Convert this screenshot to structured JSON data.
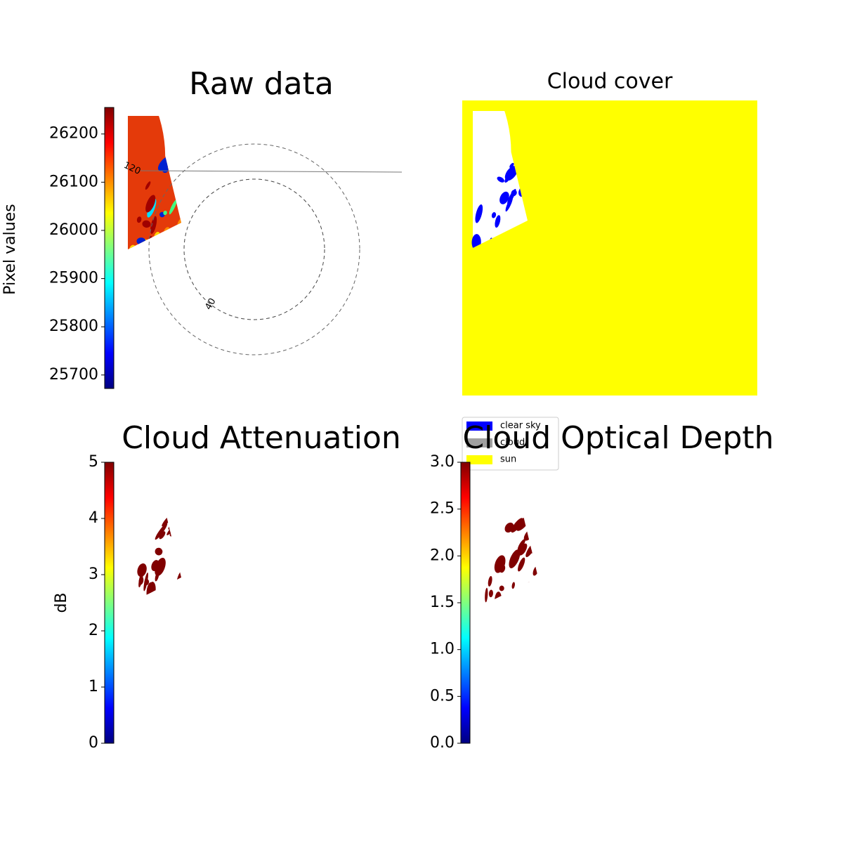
{
  "chart_data": [
    {
      "type": "image",
      "title": "Raw data",
      "colormap": "jet",
      "colorbar": {
        "label": "Pixel values",
        "clim": [
          25672,
          26255
        ],
        "ticks": [
          25700,
          25800,
          25900,
          26000,
          26100,
          26200
        ]
      },
      "annotations": [
        "120",
        "40"
      ]
    },
    {
      "type": "image",
      "title": "Cloud cover",
      "legend": {
        "position": "lower left",
        "items": [
          {
            "name": "clear sky",
            "color": "#0000ff"
          },
          {
            "name": "cloud",
            "color": "#a0a0a0"
          },
          {
            "name": "sun",
            "color": "#ffff00"
          }
        ]
      }
    },
    {
      "type": "image",
      "title": "Cloud Attenuation",
      "colormap": "jet",
      "colorbar": {
        "label": "dB",
        "clim": [
          0,
          5
        ],
        "ticks": [
          0,
          1,
          2,
          3,
          4,
          5
        ]
      }
    },
    {
      "type": "image",
      "title": "Cloud Optical Depth",
      "colormap": "jet",
      "colorbar": {
        "clim": [
          0,
          3
        ],
        "ticks": [
          {
            "value": 0,
            "label": "0.0"
          },
          {
            "value": 0.5,
            "label": "0.5"
          },
          {
            "value": 1,
            "label": "1.0"
          },
          {
            "value": 1.5,
            "label": "1.5"
          },
          {
            "value": 2,
            "label": "2.0"
          },
          {
            "value": 2.5,
            "label": "2.5"
          },
          {
            "value": 3,
            "label": "3.0"
          }
        ]
      }
    }
  ]
}
